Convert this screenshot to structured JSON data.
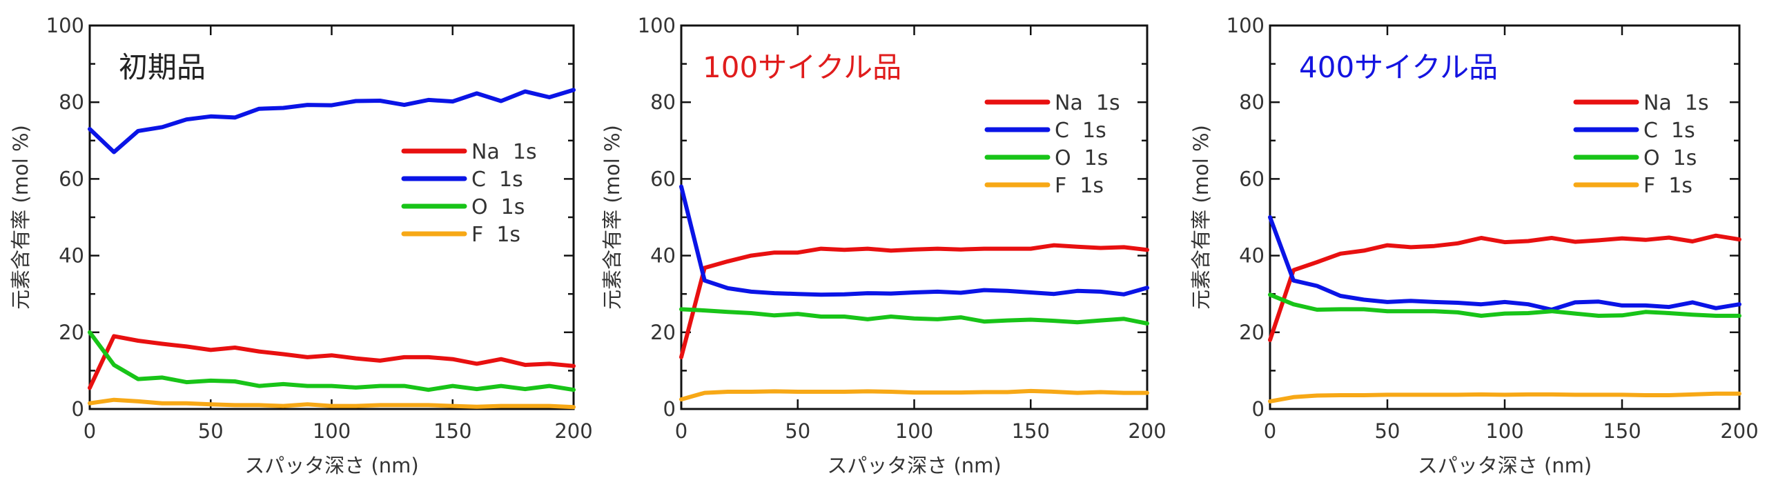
{
  "chart_data": [
    {
      "type": "line",
      "title": "初期品",
      "title_color": "#222222",
      "xlabel": "スパッタ深さ (nm)",
      "ylabel": "元素含有率 (mol %)",
      "xlim": [
        0,
        200
      ],
      "ylim": [
        0,
        100
      ],
      "xticks": [
        0,
        50,
        100,
        150,
        200
      ],
      "yticks": [
        0,
        20,
        40,
        60,
        80,
        100
      ],
      "legend": "upper-right",
      "x": [
        0,
        10,
        20,
        30,
        40,
        50,
        60,
        70,
        80,
        90,
        100,
        110,
        120,
        130,
        140,
        150,
        160,
        170,
        180,
        190,
        200
      ],
      "series": [
        {
          "name": "Na  1s",
          "color": "#e81010",
          "values": [
            5.5,
            19,
            17.8,
            17,
            16.3,
            15.4,
            16,
            15,
            14.3,
            13.5,
            14,
            13.2,
            12.6,
            13.5,
            13.5,
            13,
            11.8,
            13,
            11.5,
            11.8,
            11.2
          ]
        },
        {
          "name": "C  1s",
          "color": "#0a14e6",
          "values": [
            73,
            67,
            72.5,
            73.5,
            75.5,
            76.3,
            76,
            78.3,
            78.5,
            79.3,
            79.2,
            80.3,
            80.4,
            79.3,
            80.6,
            80.2,
            82.3,
            80.3,
            82.8,
            81.3,
            83.2
          ]
        },
        {
          "name": "O  1s",
          "color": "#18c418",
          "values": [
            20,
            11.5,
            7.8,
            8.2,
            7,
            7.4,
            7.2,
            6,
            6.5,
            6,
            6,
            5.6,
            6,
            6,
            5,
            6,
            5.2,
            6,
            5.2,
            6,
            5
          ]
        },
        {
          "name": "F  1s",
          "color": "#f7a816",
          "values": [
            1.5,
            2.4,
            2,
            1.5,
            1.5,
            1.2,
            1,
            1,
            0.8,
            1.2,
            0.8,
            0.8,
            1,
            1,
            1,
            0.8,
            0.6,
            0.8,
            0.8,
            0.8,
            0.5
          ]
        }
      ]
    },
    {
      "type": "line",
      "title": "100サイクル品",
      "title_color": "#e01c1c",
      "xlabel": "スパッタ深さ (nm)",
      "ylabel": "元素含有率 (mol %)",
      "xlim": [
        0,
        200
      ],
      "ylim": [
        0,
        100
      ],
      "xticks": [
        0,
        50,
        100,
        150,
        200
      ],
      "yticks": [
        0,
        20,
        40,
        60,
        80,
        100
      ],
      "legend": "upper-right",
      "x": [
        0,
        10,
        20,
        30,
        40,
        50,
        60,
        70,
        80,
        90,
        100,
        110,
        120,
        130,
        140,
        150,
        160,
        170,
        180,
        190,
        200
      ],
      "series": [
        {
          "name": "Na  1s",
          "color": "#e81010",
          "values": [
            13.5,
            36.8,
            38.5,
            40,
            40.8,
            40.8,
            41.8,
            41.5,
            41.8,
            41.3,
            41.6,
            41.8,
            41.6,
            41.8,
            41.8,
            41.8,
            42.7,
            42.3,
            42,
            42.2,
            41.5
          ]
        },
        {
          "name": "C  1s",
          "color": "#0a14e6",
          "values": [
            58,
            33.5,
            31.5,
            30.6,
            30.2,
            30,
            29.8,
            29.9,
            30.2,
            30.1,
            30.4,
            30.6,
            30.3,
            31,
            30.8,
            30.4,
            30,
            30.8,
            30.6,
            29.9,
            31.6
          ]
        },
        {
          "name": "O  1s",
          "color": "#18c418",
          "values": [
            26,
            25.7,
            25.3,
            25,
            24.4,
            24.8,
            24.1,
            24.1,
            23.4,
            24.1,
            23.6,
            23.4,
            23.9,
            22.8,
            23.1,
            23.3,
            23,
            22.6,
            23.1,
            23.5,
            22.3
          ]
        },
        {
          "name": "F  1s",
          "color": "#f7a816",
          "values": [
            2.5,
            4.2,
            4.5,
            4.5,
            4.6,
            4.5,
            4.5,
            4.5,
            4.6,
            4.5,
            4.3,
            4.3,
            4.3,
            4.4,
            4.4,
            4.7,
            4.5,
            4.2,
            4.4,
            4.2,
            4.2
          ]
        }
      ]
    },
    {
      "type": "line",
      "title": "400サイクル品",
      "title_color": "#1414e0",
      "xlabel": "スパッタ深さ (nm)",
      "ylabel": "元素含有率 (mol %)",
      "xlim": [
        0,
        200
      ],
      "ylim": [
        0,
        100
      ],
      "xticks": [
        0,
        50,
        100,
        150,
        200
      ],
      "yticks": [
        0,
        20,
        40,
        60,
        80,
        100
      ],
      "legend": "upper-right",
      "x": [
        0,
        10,
        20,
        30,
        40,
        50,
        60,
        70,
        80,
        90,
        100,
        110,
        120,
        130,
        140,
        150,
        160,
        170,
        180,
        190,
        200
      ],
      "series": [
        {
          "name": "Na  1s",
          "color": "#e81010",
          "values": [
            18,
            36.2,
            38.3,
            40.5,
            41.3,
            42.7,
            42.2,
            42.5,
            43.2,
            44.6,
            43.5,
            43.8,
            44.6,
            43.6,
            44,
            44.5,
            44.1,
            44.7,
            43.7,
            45.2,
            44.2
          ]
        },
        {
          "name": "C  1s",
          "color": "#0a14e6",
          "values": [
            50,
            33.5,
            32.1,
            29.5,
            28.5,
            27.9,
            28.2,
            27.9,
            27.7,
            27.3,
            27.9,
            27.3,
            25.9,
            27.8,
            28,
            27,
            27,
            26.6,
            27.8,
            26.3,
            27.3
          ]
        },
        {
          "name": "O  1s",
          "color": "#18c418",
          "values": [
            29.8,
            27.3,
            25.9,
            26,
            26,
            25.5,
            25.5,
            25.5,
            25.2,
            24.3,
            24.9,
            25,
            25.5,
            24.9,
            24.3,
            24.4,
            25.3,
            25,
            24.6,
            24.3,
            24.3
          ]
        },
        {
          "name": "F  1s",
          "color": "#f7a816",
          "values": [
            2,
            3.1,
            3.5,
            3.6,
            3.6,
            3.7,
            3.7,
            3.7,
            3.7,
            3.8,
            3.7,
            3.8,
            3.8,
            3.7,
            3.7,
            3.7,
            3.6,
            3.6,
            3.8,
            4,
            4
          ]
        }
      ]
    }
  ]
}
